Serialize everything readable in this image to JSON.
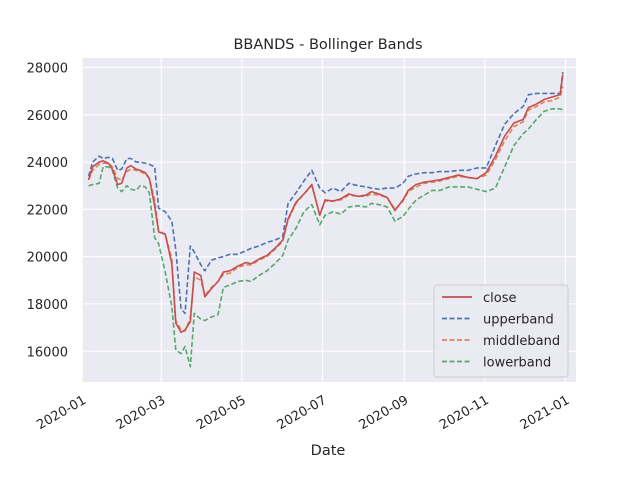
{
  "chart_data": {
    "type": "line",
    "title": "BBANDS - Bollinger Bands",
    "xlabel": "Date",
    "ylabel": "",
    "xlim": [
      "2020-01-01",
      "2021-01-09"
    ],
    "ylim": [
      14700,
      28400
    ],
    "grid": true,
    "legend_position": "lower-right",
    "x_ticks": [
      "2020-01",
      "2020-03",
      "2020-05",
      "2020-07",
      "2020-09",
      "2020-11",
      "2021-01"
    ],
    "y_ticks": [
      16000,
      18000,
      20000,
      22000,
      24000,
      26000,
      28000
    ],
    "y_tick_labels": [
      "16000",
      "18000",
      "20000",
      "22000",
      "24000",
      "26000",
      "28000"
    ],
    "colors": {
      "close": "#c44e52",
      "upperband": "#4c72b0",
      "middleband": "#dd8452",
      "lowerband": "#55a868",
      "plot_background": "#eaeaf2",
      "grid": "#ffffff"
    },
    "series": [
      {
        "name": "close",
        "style": "solid",
        "x": [
          "2020-01-06",
          "2020-01-09",
          "2020-01-14",
          "2020-01-17",
          "2020-01-21",
          "2020-01-24",
          "2020-01-28",
          "2020-01-31",
          "2020-02-04",
          "2020-02-07",
          "2020-02-11",
          "2020-02-14",
          "2020-02-18",
          "2020-02-21",
          "2020-02-25",
          "2020-02-28",
          "2020-03-04",
          "2020-03-09",
          "2020-03-12",
          "2020-03-16",
          "2020-03-19",
          "2020-03-23",
          "2020-03-26",
          "2020-03-31",
          "2020-04-03",
          "2020-04-08",
          "2020-04-13",
          "2020-04-17",
          "2020-04-22",
          "2020-04-28",
          "2020-05-04",
          "2020-05-08",
          "2020-05-14",
          "2020-05-20",
          "2020-05-26",
          "2020-06-01",
          "2020-06-05",
          "2020-06-11",
          "2020-06-17",
          "2020-06-23",
          "2020-06-29",
          "2020-07-03",
          "2020-07-09",
          "2020-07-15",
          "2020-07-21",
          "2020-07-28",
          "2020-08-03",
          "2020-08-07",
          "2020-08-13",
          "2020-08-19",
          "2020-08-25",
          "2020-08-31",
          "2020-09-04",
          "2020-09-10",
          "2020-09-16",
          "2020-09-22",
          "2020-09-28",
          "2020-10-05",
          "2020-10-12",
          "2020-10-19",
          "2020-10-26",
          "2020-11-02",
          "2020-11-09",
          "2020-11-16",
          "2020-11-23",
          "2020-11-30",
          "2020-12-04",
          "2020-12-10",
          "2020-12-16",
          "2020-12-22",
          "2020-12-28",
          "2020-12-30"
        ],
        "values": [
          23250,
          23800,
          24000,
          24050,
          23950,
          23700,
          23050,
          23100,
          23750,
          23850,
          23700,
          23650,
          23550,
          23300,
          22150,
          21050,
          20950,
          19700,
          17200,
          16800,
          16900,
          17250,
          19350,
          19200,
          18300,
          18650,
          18950,
          19350,
          19400,
          19600,
          19750,
          19700,
          19900,
          20050,
          20350,
          20700,
          21600,
          22300,
          22650,
          23050,
          21750,
          22400,
          22350,
          22450,
          22650,
          22550,
          22600,
          22750,
          22650,
          22500,
          21950,
          22400,
          22800,
          23050,
          23150,
          23200,
          23250,
          23350,
          23450,
          23350,
          23300,
          23550,
          24250,
          25100,
          25650,
          25800,
          26300,
          26450,
          26650,
          26750,
          26850,
          27700
        ]
      },
      {
        "name": "upperband",
        "style": "dashed",
        "x": [
          "2020-01-06",
          "2020-01-09",
          "2020-01-14",
          "2020-01-17",
          "2020-01-21",
          "2020-01-24",
          "2020-01-28",
          "2020-01-31",
          "2020-02-04",
          "2020-02-07",
          "2020-02-11",
          "2020-02-14",
          "2020-02-18",
          "2020-02-21",
          "2020-02-25",
          "2020-02-28",
          "2020-03-04",
          "2020-03-09",
          "2020-03-12",
          "2020-03-16",
          "2020-03-19",
          "2020-03-23",
          "2020-03-26",
          "2020-03-31",
          "2020-04-03",
          "2020-04-08",
          "2020-04-13",
          "2020-04-17",
          "2020-04-22",
          "2020-04-28",
          "2020-05-04",
          "2020-05-08",
          "2020-05-14",
          "2020-05-20",
          "2020-05-26",
          "2020-06-01",
          "2020-06-05",
          "2020-06-11",
          "2020-06-17",
          "2020-06-23",
          "2020-06-29",
          "2020-07-03",
          "2020-07-09",
          "2020-07-15",
          "2020-07-21",
          "2020-07-28",
          "2020-08-03",
          "2020-08-07",
          "2020-08-13",
          "2020-08-19",
          "2020-08-25",
          "2020-08-31",
          "2020-09-04",
          "2020-09-10",
          "2020-09-16",
          "2020-09-22",
          "2020-09-28",
          "2020-10-05",
          "2020-10-12",
          "2020-10-19",
          "2020-10-26",
          "2020-11-02",
          "2020-11-09",
          "2020-11-16",
          "2020-11-23",
          "2020-11-30",
          "2020-12-04",
          "2020-12-10",
          "2020-12-16",
          "2020-12-22",
          "2020-12-28",
          "2020-12-30"
        ],
        "values": [
          23400,
          24000,
          24250,
          24150,
          24200,
          24150,
          23650,
          23700,
          24150,
          24150,
          24000,
          24000,
          23950,
          23900,
          23800,
          22050,
          21900,
          21500,
          20300,
          17800,
          17600,
          20450,
          20200,
          19650,
          19400,
          19850,
          19950,
          20000,
          20100,
          20100,
          20250,
          20350,
          20450,
          20600,
          20700,
          20850,
          22250,
          22700,
          23200,
          23650,
          22900,
          22700,
          22900,
          22750,
          23100,
          23000,
          22950,
          22900,
          22850,
          22900,
          22900,
          23100,
          23400,
          23500,
          23550,
          23550,
          23600,
          23600,
          23650,
          23650,
          23750,
          23750,
          24700,
          25600,
          26050,
          26350,
          26850,
          26900,
          26900,
          26900,
          26900,
          27800
        ]
      },
      {
        "name": "middleband",
        "style": "dashed",
        "x": [
          "2020-01-06",
          "2020-01-09",
          "2020-01-14",
          "2020-01-17",
          "2020-01-21",
          "2020-01-24",
          "2020-01-28",
          "2020-01-31",
          "2020-02-04",
          "2020-02-07",
          "2020-02-11",
          "2020-02-14",
          "2020-02-18",
          "2020-02-21",
          "2020-02-25",
          "2020-02-28",
          "2020-03-04",
          "2020-03-09",
          "2020-03-12",
          "2020-03-16",
          "2020-03-19",
          "2020-03-23",
          "2020-03-26",
          "2020-03-31",
          "2020-04-03",
          "2020-04-08",
          "2020-04-13",
          "2020-04-17",
          "2020-04-22",
          "2020-04-28",
          "2020-05-04",
          "2020-05-08",
          "2020-05-14",
          "2020-05-20",
          "2020-05-26",
          "2020-06-01",
          "2020-06-05",
          "2020-06-11",
          "2020-06-17",
          "2020-06-23",
          "2020-06-29",
          "2020-07-03",
          "2020-07-09",
          "2020-07-15",
          "2020-07-21",
          "2020-07-28",
          "2020-08-03",
          "2020-08-07",
          "2020-08-13",
          "2020-08-19",
          "2020-08-25",
          "2020-08-31",
          "2020-09-04",
          "2020-09-10",
          "2020-09-16",
          "2020-09-22",
          "2020-09-28",
          "2020-10-05",
          "2020-10-12",
          "2020-10-19",
          "2020-10-26",
          "2020-11-02",
          "2020-11-09",
          "2020-11-16",
          "2020-11-23",
          "2020-11-30",
          "2020-12-04",
          "2020-12-10",
          "2020-12-16",
          "2020-12-22",
          "2020-12-28",
          "2020-12-30"
        ],
        "values": [
          23250,
          23650,
          23900,
          23950,
          23950,
          23800,
          23300,
          23250,
          23600,
          23700,
          23650,
          23600,
          23500,
          23300,
          22400,
          21100,
          20950,
          19900,
          17300,
          16900,
          16850,
          17400,
          19150,
          19000,
          18350,
          18700,
          18950,
          19250,
          19300,
          19550,
          19650,
          19650,
          19850,
          20000,
          20300,
          20650,
          21550,
          22250,
          22650,
          23000,
          21800,
          22350,
          22350,
          22400,
          22600,
          22550,
          22550,
          22650,
          22600,
          22500,
          22000,
          22350,
          22750,
          22950,
          23100,
          23150,
          23200,
          23300,
          23400,
          23350,
          23300,
          23450,
          24100,
          24900,
          25500,
          25700,
          26200,
          26350,
          26550,
          26600,
          26750,
          27200
        ]
      },
      {
        "name": "lowerband",
        "style": "dashed",
        "x": [
          "2020-01-06",
          "2020-01-09",
          "2020-01-14",
          "2020-01-17",
          "2020-01-21",
          "2020-01-24",
          "2020-01-28",
          "2020-01-31",
          "2020-02-04",
          "2020-02-07",
          "2020-02-11",
          "2020-02-14",
          "2020-02-18",
          "2020-02-21",
          "2020-02-25",
          "2020-02-28",
          "2020-03-04",
          "2020-03-09",
          "2020-03-12",
          "2020-03-16",
          "2020-03-19",
          "2020-03-23",
          "2020-03-26",
          "2020-03-31",
          "2020-04-03",
          "2020-04-08",
          "2020-04-13",
          "2020-04-17",
          "2020-04-22",
          "2020-04-28",
          "2020-05-04",
          "2020-05-08",
          "2020-05-14",
          "2020-05-20",
          "2020-05-26",
          "2020-06-01",
          "2020-06-05",
          "2020-06-11",
          "2020-06-17",
          "2020-06-23",
          "2020-06-29",
          "2020-07-03",
          "2020-07-09",
          "2020-07-15",
          "2020-07-21",
          "2020-07-28",
          "2020-08-03",
          "2020-08-07",
          "2020-08-13",
          "2020-08-19",
          "2020-08-25",
          "2020-08-31",
          "2020-09-04",
          "2020-09-10",
          "2020-09-16",
          "2020-09-22",
          "2020-09-28",
          "2020-10-05",
          "2020-10-12",
          "2020-10-19",
          "2020-10-26",
          "2020-11-02",
          "2020-11-09",
          "2020-11-16",
          "2020-11-23",
          "2020-11-30",
          "2020-12-04",
          "2020-12-10",
          "2020-12-16",
          "2020-12-22",
          "2020-12-28",
          "2020-12-30"
        ],
        "values": [
          23000,
          23050,
          23100,
          23800,
          23800,
          23650,
          22900,
          22750,
          23000,
          22850,
          22800,
          23000,
          22950,
          22700,
          20800,
          20550,
          19350,
          17900,
          16050,
          15900,
          16200,
          15350,
          17600,
          17350,
          17300,
          17450,
          17550,
          18700,
          18800,
          18950,
          19000,
          18950,
          19200,
          19400,
          19700,
          20050,
          20700,
          21200,
          21900,
          22200,
          21350,
          21750,
          21900,
          21800,
          22100,
          22150,
          22100,
          22250,
          22200,
          22100,
          21500,
          21700,
          22000,
          22400,
          22600,
          22800,
          22800,
          22950,
          22950,
          22950,
          22850,
          22750,
          22900,
          23800,
          24700,
          25200,
          25400,
          25800,
          26150,
          26250,
          26250,
          26200
        ]
      }
    ]
  }
}
